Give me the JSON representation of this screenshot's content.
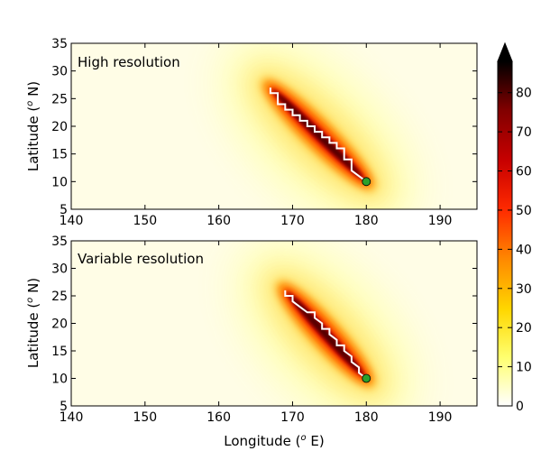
{
  "chart_data": [
    {
      "type": "heatmap",
      "title": "High resolution",
      "xlabel": "",
      "ylabel_prefix": "Latitude (",
      "ylabel_sup": "o",
      "ylabel_suffix": " N)",
      "xlim": [
        140,
        195
      ],
      "ylim": [
        5,
        35
      ],
      "xticks": [
        140,
        150,
        160,
        170,
        180,
        190
      ],
      "yticks": [
        5,
        10,
        15,
        20,
        25,
        30,
        35
      ],
      "track": [
        [
          180,
          10
        ],
        [
          178,
          12
        ],
        [
          178,
          14
        ],
        [
          177,
          14
        ],
        [
          177,
          16
        ],
        [
          176,
          16
        ],
        [
          176,
          17
        ],
        [
          175,
          17
        ],
        [
          175,
          18
        ],
        [
          174,
          18
        ],
        [
          174,
          19
        ],
        [
          173,
          19
        ],
        [
          173,
          20
        ],
        [
          172,
          20
        ],
        [
          172,
          21
        ],
        [
          171,
          21
        ],
        [
          171,
          22
        ],
        [
          170,
          22
        ],
        [
          170,
          23
        ],
        [
          169,
          23
        ],
        [
          169,
          24
        ],
        [
          168,
          24
        ],
        [
          168,
          26
        ],
        [
          167,
          26
        ],
        [
          167,
          27
        ]
      ],
      "start_point": [
        180,
        10
      ],
      "hot_band_start": [
        180,
        10
      ],
      "hot_band_end": [
        167,
        27
      ],
      "max_value": 88,
      "marker_color": "#2ca02c",
      "track_color": "#ffffff"
    },
    {
      "type": "heatmap",
      "title": "Variable resolution",
      "xlabel_prefix": "Longitude (",
      "xlabel_sup": "o",
      "xlabel_suffix": " E)",
      "ylabel_prefix": "Latitude (",
      "ylabel_sup": "o",
      "ylabel_suffix": " N)",
      "xlim": [
        140,
        195
      ],
      "ylim": [
        5,
        35
      ],
      "xticks": [
        140,
        150,
        160,
        170,
        180,
        190
      ],
      "yticks": [
        5,
        10,
        15,
        20,
        25,
        30,
        35
      ],
      "track": [
        [
          180,
          10
        ],
        [
          179,
          11
        ],
        [
          179,
          12
        ],
        [
          178,
          13
        ],
        [
          178,
          14
        ],
        [
          177,
          15
        ],
        [
          177,
          16
        ],
        [
          176,
          16
        ],
        [
          176,
          17
        ],
        [
          175,
          18
        ],
        [
          175,
          19
        ],
        [
          174,
          19
        ],
        [
          174,
          20
        ],
        [
          173,
          21
        ],
        [
          173,
          22
        ],
        [
          172,
          22
        ],
        [
          171,
          23
        ],
        [
          170,
          24
        ],
        [
          170,
          25
        ],
        [
          169,
          25
        ],
        [
          169,
          26
        ]
      ],
      "start_point": [
        180,
        10
      ],
      "hot_band_start": [
        180,
        10
      ],
      "hot_band_end": [
        169,
        26
      ],
      "max_value": 85,
      "marker_color": "#2ca02c",
      "track_color": "#ffffff"
    }
  ],
  "colorbar": {
    "ticks": [
      0,
      10,
      20,
      30,
      40,
      50,
      60,
      70,
      80
    ],
    "range": [
      0,
      88
    ],
    "extend": "max",
    "colormap": [
      "#ffffff",
      "#ffff70",
      "#ffd700",
      "#ff8c00",
      "#ff2a00",
      "#c80000",
      "#800000",
      "#000000"
    ]
  }
}
